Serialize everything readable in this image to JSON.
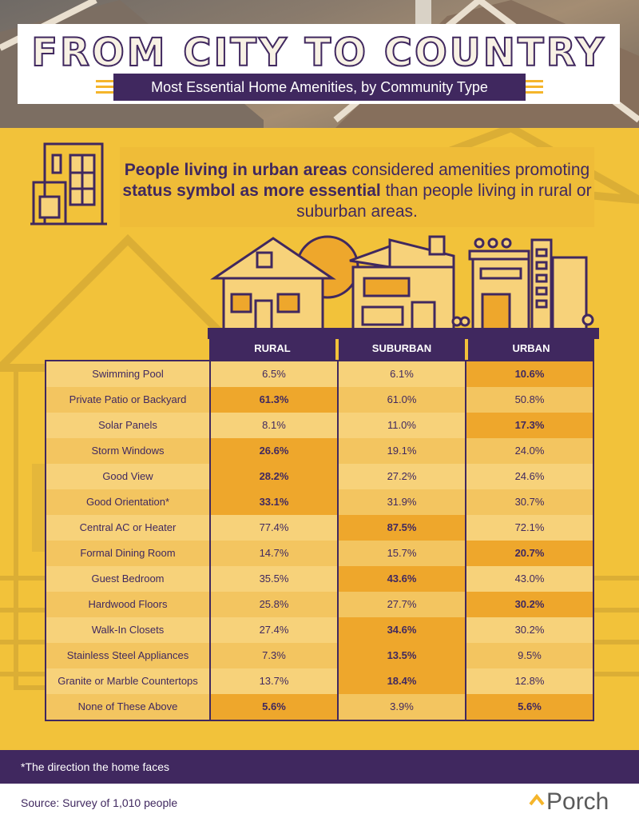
{
  "header": {
    "title": "FROM CITY TO COUNTRY",
    "subtitle": "Most Essential Home Amenities, by Community Type"
  },
  "callout": {
    "bold1": "People living in urban areas",
    "text1": " considered amenities promoting ",
    "bold2": "status symbol as more essential",
    "text2": " than people living in rural or suburban areas."
  },
  "columns": [
    "RURAL",
    "SUBURBAN",
    "URBAN"
  ],
  "rows": [
    {
      "label": "Swimming Pool",
      "values": [
        "6.5%",
        "6.1%",
        "10.6%"
      ],
      "highlight": 2
    },
    {
      "label": "Private Patio or Backyard",
      "values": [
        "61.3%",
        "61.0%",
        "50.8%"
      ],
      "highlight": 0
    },
    {
      "label": "Solar Panels",
      "values": [
        "8.1%",
        "11.0%",
        "17.3%"
      ],
      "highlight": 2
    },
    {
      "label": "Storm Windows",
      "values": [
        "26.6%",
        "19.1%",
        "24.0%"
      ],
      "highlight": 0
    },
    {
      "label": "Good View",
      "values": [
        "28.2%",
        "27.2%",
        "24.6%"
      ],
      "highlight": 0
    },
    {
      "label": "Good Orientation*",
      "values": [
        "33.1%",
        "31.9%",
        "30.7%"
      ],
      "highlight": 0
    },
    {
      "label": "Central AC or Heater",
      "values": [
        "77.4%",
        "87.5%",
        "72.1%"
      ],
      "highlight": 1
    },
    {
      "label": "Formal Dining Room",
      "values": [
        "14.7%",
        "15.7%",
        "20.7%"
      ],
      "highlight": 2
    },
    {
      "label": "Guest Bedroom",
      "values": [
        "35.5%",
        "43.6%",
        "43.0%"
      ],
      "highlight": 1
    },
    {
      "label": "Hardwood Floors",
      "values": [
        "25.8%",
        "27.7%",
        "30.2%"
      ],
      "highlight": 2
    },
    {
      "label": "Walk-In Closets",
      "values": [
        "27.4%",
        "34.6%",
        "30.2%"
      ],
      "highlight": 1
    },
    {
      "label": "Stainless Steel Appliances",
      "values": [
        "7.3%",
        "13.5%",
        "9.5%"
      ],
      "highlight": 1
    },
    {
      "label": "Granite or Marble Countertops",
      "values": [
        "13.7%",
        "18.4%",
        "12.8%"
      ],
      "highlight": 1
    },
    {
      "label": "None of These Above",
      "values": [
        "5.6%",
        "3.9%",
        "5.6%"
      ],
      "highlight": [
        0,
        2
      ]
    }
  ],
  "footnote": "*The direction the home faces",
  "source": "Source: Survey of 1,010 people",
  "brand": "Porch",
  "colors": {
    "purple": "#40285f",
    "yellow": "#f2c23a",
    "highlight": "#eea72c"
  },
  "chart_data": {
    "type": "table",
    "title": "FROM CITY TO COUNTRY",
    "subtitle": "Most Essential Home Amenities, by Community Type",
    "columns": [
      "RURAL",
      "SUBURBAN",
      "URBAN"
    ],
    "categories": [
      "Swimming Pool",
      "Private Patio or Backyard",
      "Solar Panels",
      "Storm Windows",
      "Good View",
      "Good Orientation*",
      "Central AC or Heater",
      "Formal Dining Room",
      "Guest Bedroom",
      "Hardwood Floors",
      "Walk-In Closets",
      "Stainless Steel Appliances",
      "Granite or Marble Countertops",
      "None of These Above"
    ],
    "series": [
      {
        "name": "RURAL",
        "values": [
          6.5,
          61.3,
          8.1,
          26.6,
          28.2,
          33.1,
          77.4,
          14.7,
          35.5,
          25.8,
          27.4,
          7.3,
          13.7,
          5.6
        ]
      },
      {
        "name": "SUBURBAN",
        "values": [
          6.1,
          61.0,
          11.0,
          19.1,
          27.2,
          31.9,
          87.5,
          15.7,
          43.6,
          27.7,
          34.6,
          13.5,
          18.4,
          3.9
        ]
      },
      {
        "name": "URBAN",
        "values": [
          10.6,
          50.8,
          17.3,
          24.0,
          24.6,
          30.7,
          72.1,
          20.7,
          43.0,
          30.2,
          30.2,
          9.5,
          12.8,
          5.6
        ]
      }
    ],
    "unit": "%"
  }
}
